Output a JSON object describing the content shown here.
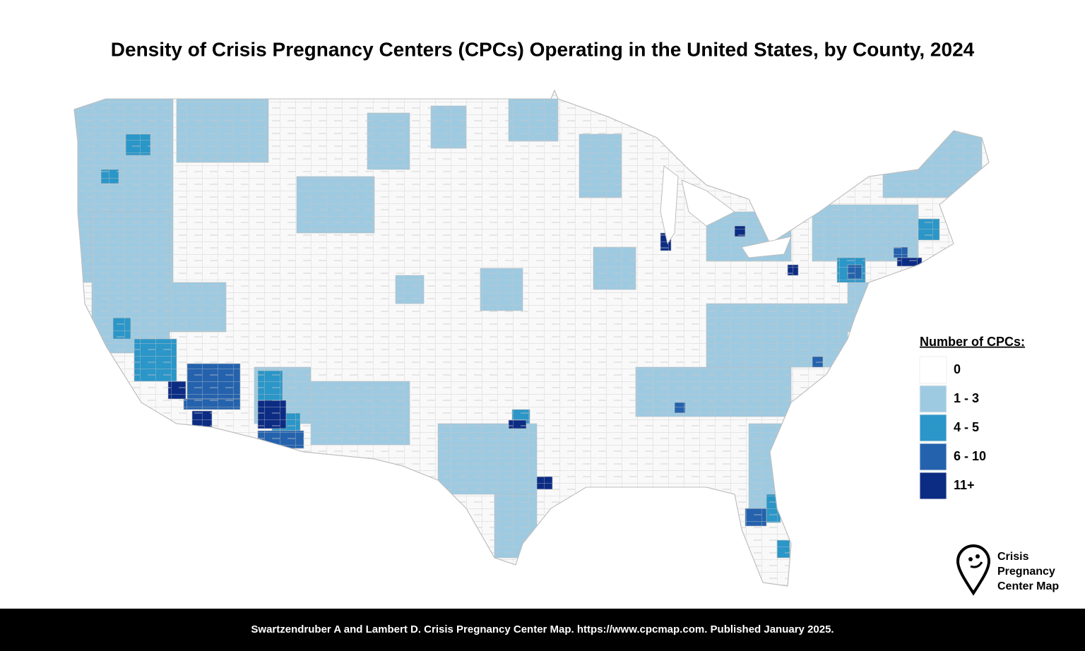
{
  "title": "Density of Crisis Pregnancy Centers (CPCs) Operating in the United States, by County, 2024",
  "legend": {
    "title": "Number of CPCs:",
    "items": [
      {
        "label": "0",
        "color": "#ffffff"
      },
      {
        "label": "1 - 3",
        "color": "#9ecae1"
      },
      {
        "label": "4 - 5",
        "color": "#2b96c8"
      },
      {
        "label": "6 - 10",
        "color": "#2462ad"
      },
      {
        "label": "11+",
        "color": "#0c2c84"
      }
    ]
  },
  "logo": {
    "lines": [
      "Crisis",
      "Pregnancy",
      "Center Map"
    ]
  },
  "footer": "Swartzendruber A and Lambert D. Crisis Pregnancy Center Map. https://www.cpcmap.com. Published January 2025."
}
